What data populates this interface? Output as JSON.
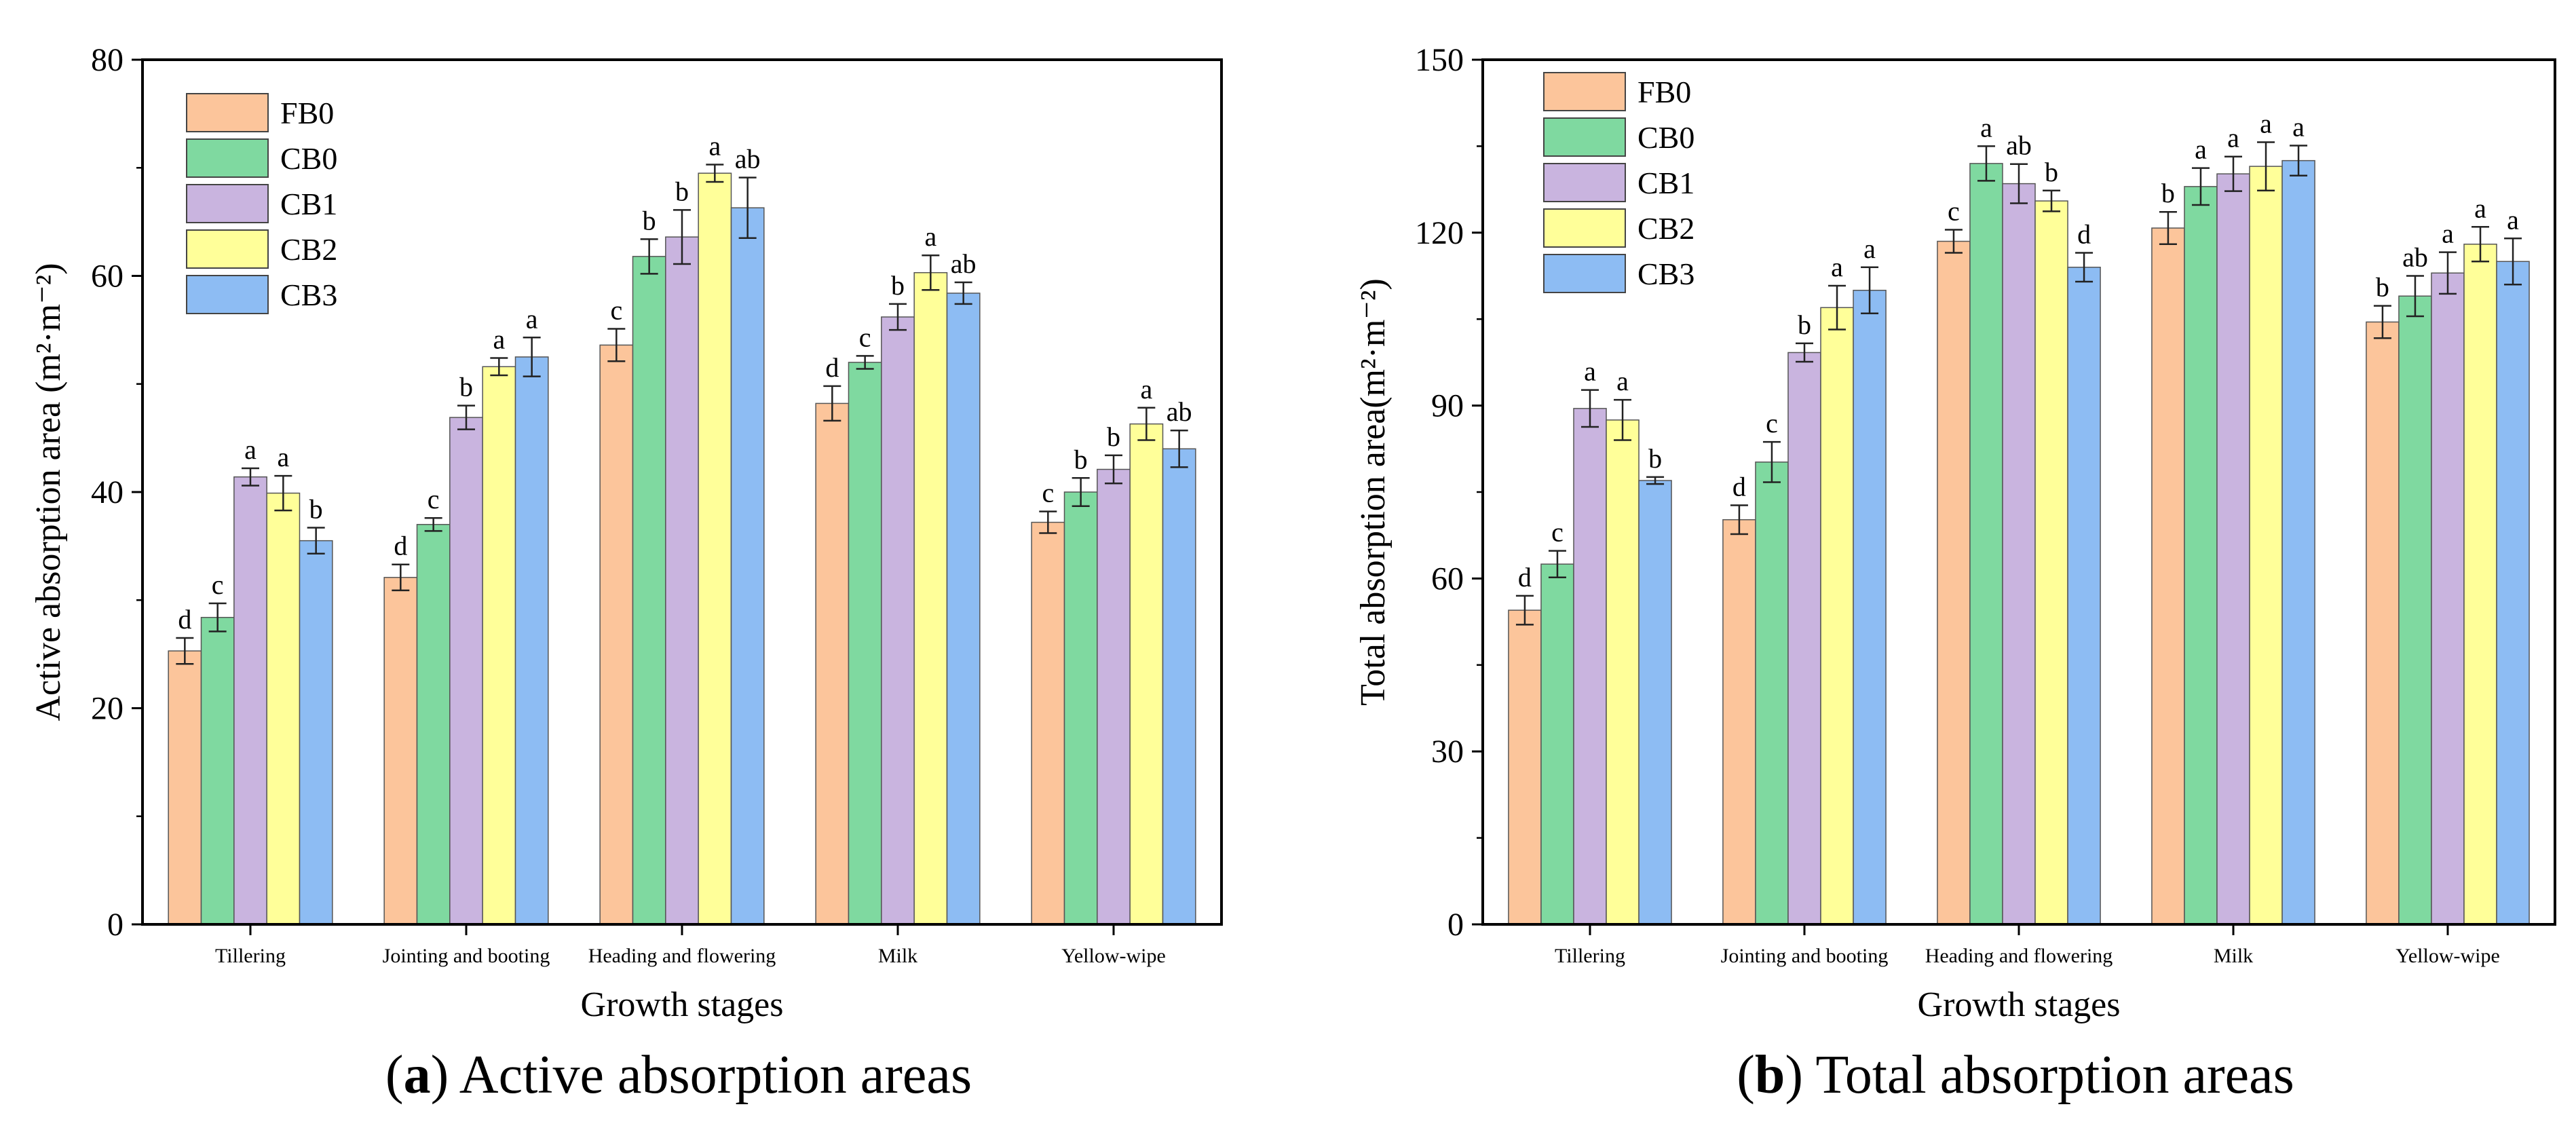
{
  "colors": {
    "FB0": "#fcc59b",
    "CB0": "#7fd9a0",
    "CB1": "#c9b4df",
    "CB2": "#ffff99",
    "CB3": "#8dbcf3"
  },
  "captions": [
    {
      "letter": "a",
      "text": "Active absorption areas"
    },
    {
      "letter": "b",
      "text": "Total absorption areas"
    }
  ],
  "chart_data": [
    {
      "type": "bar",
      "title": "",
      "xlabel": "Growth stages",
      "ylabel": "Active absorption area (m²·m⁻²)",
      "ylim": [
        0,
        80
      ],
      "yticks": [
        0,
        20,
        40,
        60,
        80
      ],
      "legend_position": "top-left",
      "categories": [
        "Tillering",
        "Jointing and booting",
        "Heading and flowering",
        "Milk",
        "Yellow-wipe"
      ],
      "series": [
        {
          "name": "FB0",
          "values": [
            25.3,
            32.1,
            53.6,
            48.2,
            37.2
          ],
          "errors": [
            1.2,
            1.2,
            1.5,
            1.6,
            1.0
          ],
          "labels": [
            "d",
            "d",
            "c",
            "d",
            "c"
          ]
        },
        {
          "name": "CB0",
          "values": [
            28.4,
            37.0,
            61.8,
            52.0,
            40.0
          ],
          "errors": [
            1.3,
            0.6,
            1.6,
            0.6,
            1.3
          ],
          "labels": [
            "c",
            "c",
            "b",
            "c",
            "b"
          ]
        },
        {
          "name": "CB1",
          "values": [
            41.4,
            46.9,
            63.6,
            56.2,
            42.1
          ],
          "errors": [
            0.8,
            1.1,
            2.5,
            1.2,
            1.3
          ],
          "labels": [
            "a",
            "b",
            "b",
            "b",
            "b"
          ]
        },
        {
          "name": "CB2",
          "values": [
            39.9,
            51.6,
            69.5,
            60.3,
            46.3
          ],
          "errors": [
            1.6,
            0.8,
            0.8,
            1.6,
            1.5
          ],
          "labels": [
            "a",
            "a",
            "a",
            "a",
            "a"
          ]
        },
        {
          "name": "CB3",
          "values": [
            35.5,
            52.5,
            66.3,
            58.4,
            44.0
          ],
          "errors": [
            1.2,
            1.8,
            2.8,
            1.0,
            1.7
          ],
          "labels": [
            "b",
            "a",
            "ab",
            "ab",
            "ab"
          ]
        }
      ]
    },
    {
      "type": "bar",
      "title": "",
      "xlabel": "Growth stages",
      "ylabel": "Total absorption area(m²·m⁻²)",
      "ylim": [
        0,
        150
      ],
      "yticks": [
        0,
        30,
        60,
        90,
        120,
        150
      ],
      "legend_position": "top-left",
      "categories": [
        "Tillering",
        "Jointing and booting",
        "Heading and flowering",
        "Milk",
        "Yellow-wipe"
      ],
      "series": [
        {
          "name": "FB0",
          "values": [
            54.5,
            70.2,
            118.5,
            120.8,
            104.5
          ],
          "errors": [
            2.5,
            2.5,
            2.0,
            2.8,
            2.8
          ],
          "labels": [
            "d",
            "d",
            "c",
            "b",
            "b"
          ]
        },
        {
          "name": "CB0",
          "values": [
            62.5,
            80.2,
            132.0,
            128.0,
            109.0
          ],
          "errors": [
            2.3,
            3.5,
            3.0,
            3.2,
            3.5
          ],
          "labels": [
            "c",
            "c",
            "a",
            "a",
            "ab"
          ]
        },
        {
          "name": "CB1",
          "values": [
            89.5,
            99.2,
            128.5,
            130.2,
            113.0
          ],
          "errors": [
            3.2,
            1.6,
            3.4,
            3.0,
            3.6
          ],
          "labels": [
            "a",
            "b",
            "ab",
            "a",
            "a"
          ]
        },
        {
          "name": "CB2",
          "values": [
            87.5,
            107.0,
            125.5,
            131.5,
            118.0
          ],
          "errors": [
            3.5,
            3.8,
            1.8,
            4.2,
            3.0
          ],
          "labels": [
            "a",
            "a",
            "b",
            "a",
            "a"
          ]
        },
        {
          "name": "CB3",
          "values": [
            77.0,
            110.0,
            114.0,
            132.5,
            115.0
          ],
          "errors": [
            0.6,
            4.0,
            2.5,
            2.6,
            4.0
          ],
          "labels": [
            "b",
            "a",
            "d",
            "a",
            "a"
          ]
        }
      ]
    }
  ]
}
